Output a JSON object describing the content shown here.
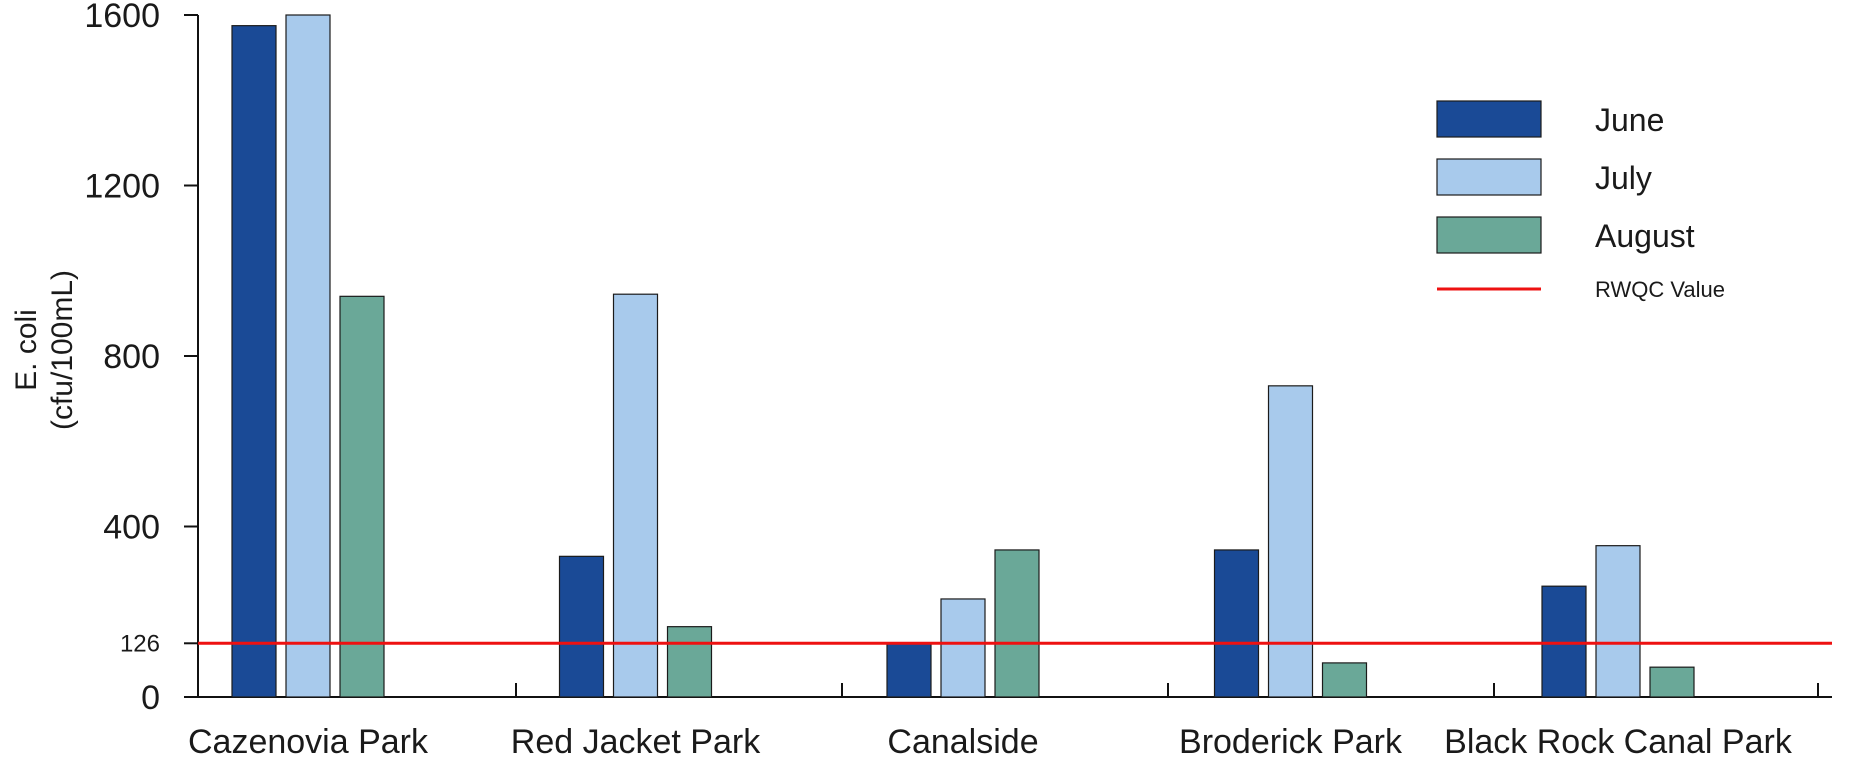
{
  "chart_data": {
    "type": "bar",
    "title": "",
    "xlabel": "",
    "ylabel_lines": [
      "E. coli",
      "(cfu/100mL)"
    ],
    "ylim": [
      0,
      1600
    ],
    "yticks": [
      0,
      126,
      400,
      800,
      1200,
      1600
    ],
    "categories": [
      "Cazenovia Park",
      "Red Jacket Park",
      "Canalside",
      "Broderick Park",
      "Black Rock Canal Park"
    ],
    "series": [
      {
        "name": "June",
        "color": "#1a4a96",
        "values": [
          1575,
          330,
          125,
          345,
          260
        ]
      },
      {
        "name": "July",
        "color": "#a8caec",
        "values": [
          1600,
          945,
          230,
          730,
          355
        ]
      },
      {
        "name": "August",
        "color": "#6aa898",
        "values": [
          940,
          165,
          345,
          80,
          70
        ]
      }
    ],
    "reference_line": {
      "name": "RWQC Value",
      "value": 126,
      "color": "#ee1111"
    },
    "legend_position": "top-right",
    "grid": false
  }
}
